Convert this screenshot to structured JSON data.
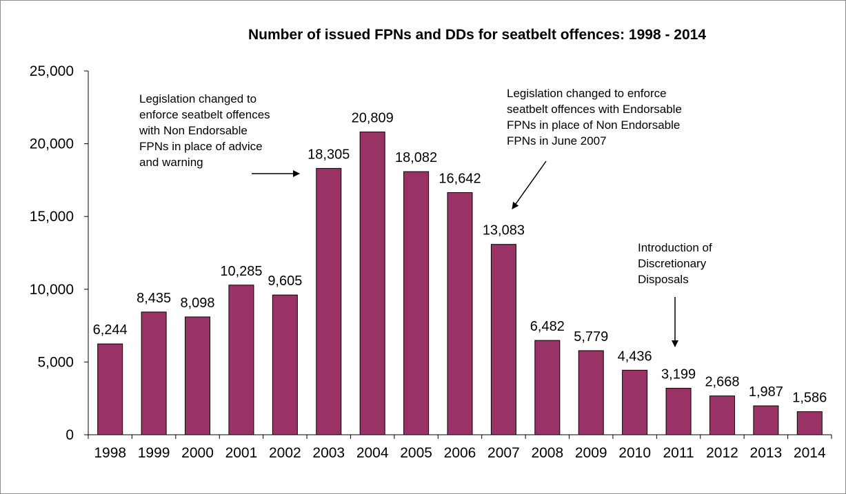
{
  "chart_data": {
    "type": "bar",
    "title": "Number of issued FPNs and DDs for seatbelt offences: 1998 - 2014",
    "xlabel": "",
    "ylabel": "",
    "categories": [
      "1998",
      "1999",
      "2000",
      "2001",
      "2002",
      "2003",
      "2004",
      "2005",
      "2006",
      "2007",
      "2008",
      "2009",
      "2010",
      "2011",
      "2012",
      "2013",
      "2014"
    ],
    "values": [
      6244,
      8435,
      8098,
      10285,
      9605,
      18305,
      20809,
      18082,
      16642,
      13083,
      6482,
      5779,
      4436,
      3199,
      2668,
      1987,
      1586
    ],
    "data_labels": [
      "6,244",
      "8,435",
      "8,098",
      "10,285",
      "9,605",
      "18,305",
      "20,809",
      "18,082",
      "16,642",
      "13,083",
      "6,482",
      "5,779",
      "4,436",
      "3,199",
      "2,668",
      "1,987",
      "1,586"
    ],
    "ylim": [
      0,
      25000
    ],
    "yticks": [
      0,
      5000,
      10000,
      15000,
      20000,
      25000
    ],
    "ytick_labels": [
      "0",
      "5,000",
      "10,000",
      "15,000",
      "20,000",
      "25,000"
    ],
    "grid": false,
    "legend": "none",
    "bar_color": "#993366",
    "annotations": [
      {
        "lines": [
          "Legislation changed to",
          "enforce seatbelt offences",
          "with Non Endorsable",
          "FPNs in place of advice",
          "and warning"
        ],
        "points_to": "2003"
      },
      {
        "lines": [
          "Legislation changed to enforce",
          "seatbelt offences with Endorsable",
          "FPNs in place of Non Endorsable",
          "FPNs in June 2007"
        ],
        "points_to": "2007"
      },
      {
        "lines": [
          "Introduction of",
          "Discretionary",
          "Disposals"
        ],
        "points_to": "2011"
      }
    ]
  }
}
